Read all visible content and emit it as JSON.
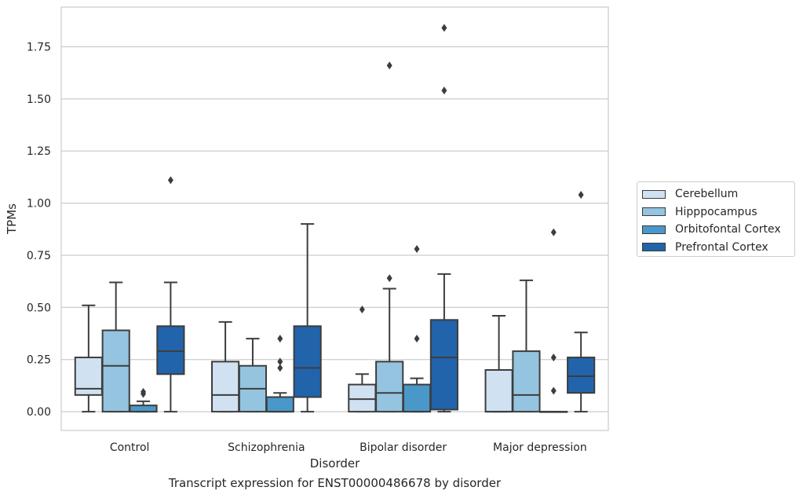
{
  "chart_data": {
    "type": "box",
    "title": "Transcript expression for ENST00000486678 by disorder",
    "xlabel": "Disorder",
    "ylabel": "TPMs",
    "ylim": [
      -0.09,
      1.94
    ],
    "yticks": [
      "0.00",
      "0.25",
      "0.50",
      "0.75",
      "1.00",
      "1.25",
      "1.50",
      "1.75"
    ],
    "ytick_values": [
      0,
      0.25,
      0.5,
      0.75,
      1.0,
      1.25,
      1.5,
      1.75
    ],
    "grid": "horizontal",
    "legend_position": "right",
    "categories": [
      "Control",
      "Schizophrenia",
      "Bipolar disorder",
      "Major depression"
    ],
    "series": [
      {
        "name": "Cerebellum",
        "color": "#d0e1f2",
        "boxes": [
          {
            "whislo": 0,
            "q1": 0.08,
            "med": 0.11,
            "q3": 0.26,
            "whishi": 0.51,
            "fliers": []
          },
          {
            "whislo": 0,
            "q1": 0,
            "med": 0.08,
            "q3": 0.24,
            "whishi": 0.43,
            "fliers": []
          },
          {
            "whislo": 0,
            "q1": 0,
            "med": 0.06,
            "q3": 0.13,
            "whishi": 0.18,
            "fliers": [
              0.49
            ]
          },
          {
            "whislo": 0,
            "q1": 0,
            "med": 0,
            "q3": 0.2,
            "whishi": 0.46,
            "fliers": []
          }
        ]
      },
      {
        "name": "Hipppocampus",
        "color": "#94c4df",
        "boxes": [
          {
            "whislo": 0,
            "q1": 0,
            "med": 0.22,
            "q3": 0.39,
            "whishi": 0.62,
            "fliers": []
          },
          {
            "whislo": 0,
            "q1": 0,
            "med": 0.11,
            "q3": 0.22,
            "whishi": 0.35,
            "fliers": []
          },
          {
            "whislo": 0,
            "q1": 0,
            "med": 0.09,
            "q3": 0.24,
            "whishi": 0.59,
            "fliers": [
              0.64,
              1.66
            ]
          },
          {
            "whislo": 0,
            "q1": 0,
            "med": 0.08,
            "q3": 0.29,
            "whishi": 0.63,
            "fliers": []
          }
        ]
      },
      {
        "name": "Orbitofontal Cortex",
        "color": "#4a98c9",
        "boxes": [
          {
            "whislo": 0,
            "q1": 0,
            "med": 0,
            "q3": 0.03,
            "whishi": 0.05,
            "fliers": [
              0.085,
              0.095
            ]
          },
          {
            "whislo": 0,
            "q1": 0,
            "med": 0,
            "q3": 0.07,
            "whishi": 0.09,
            "fliers": [
              0.21,
              0.24,
              0.35
            ]
          },
          {
            "whislo": 0,
            "q1": 0,
            "med": 0,
            "q3": 0.13,
            "whishi": 0.16,
            "fliers": [
              0.35,
              0.78
            ]
          },
          {
            "whislo": 0,
            "q1": 0,
            "med": 0,
            "q3": 0,
            "whishi": 0,
            "fliers": [
              0.1,
              0.26,
              0.86
            ]
          }
        ]
      },
      {
        "name": "Prefrontal Cortex",
        "color": "#2164ab",
        "boxes": [
          {
            "whislo": 0,
            "q1": 0.18,
            "med": 0.29,
            "q3": 0.41,
            "whishi": 0.62,
            "fliers": [
              1.11
            ]
          },
          {
            "whislo": 0,
            "q1": 0.07,
            "med": 0.21,
            "q3": 0.41,
            "whishi": 0.9,
            "fliers": []
          },
          {
            "whislo": 0,
            "q1": 0.01,
            "med": 0.26,
            "q3": 0.44,
            "whishi": 0.66,
            "fliers": [
              1.54,
              1.84
            ]
          },
          {
            "whislo": 0,
            "q1": 0.09,
            "med": 0.17,
            "q3": 0.26,
            "whishi": 0.38,
            "fliers": [
              1.04
            ]
          }
        ]
      }
    ]
  }
}
